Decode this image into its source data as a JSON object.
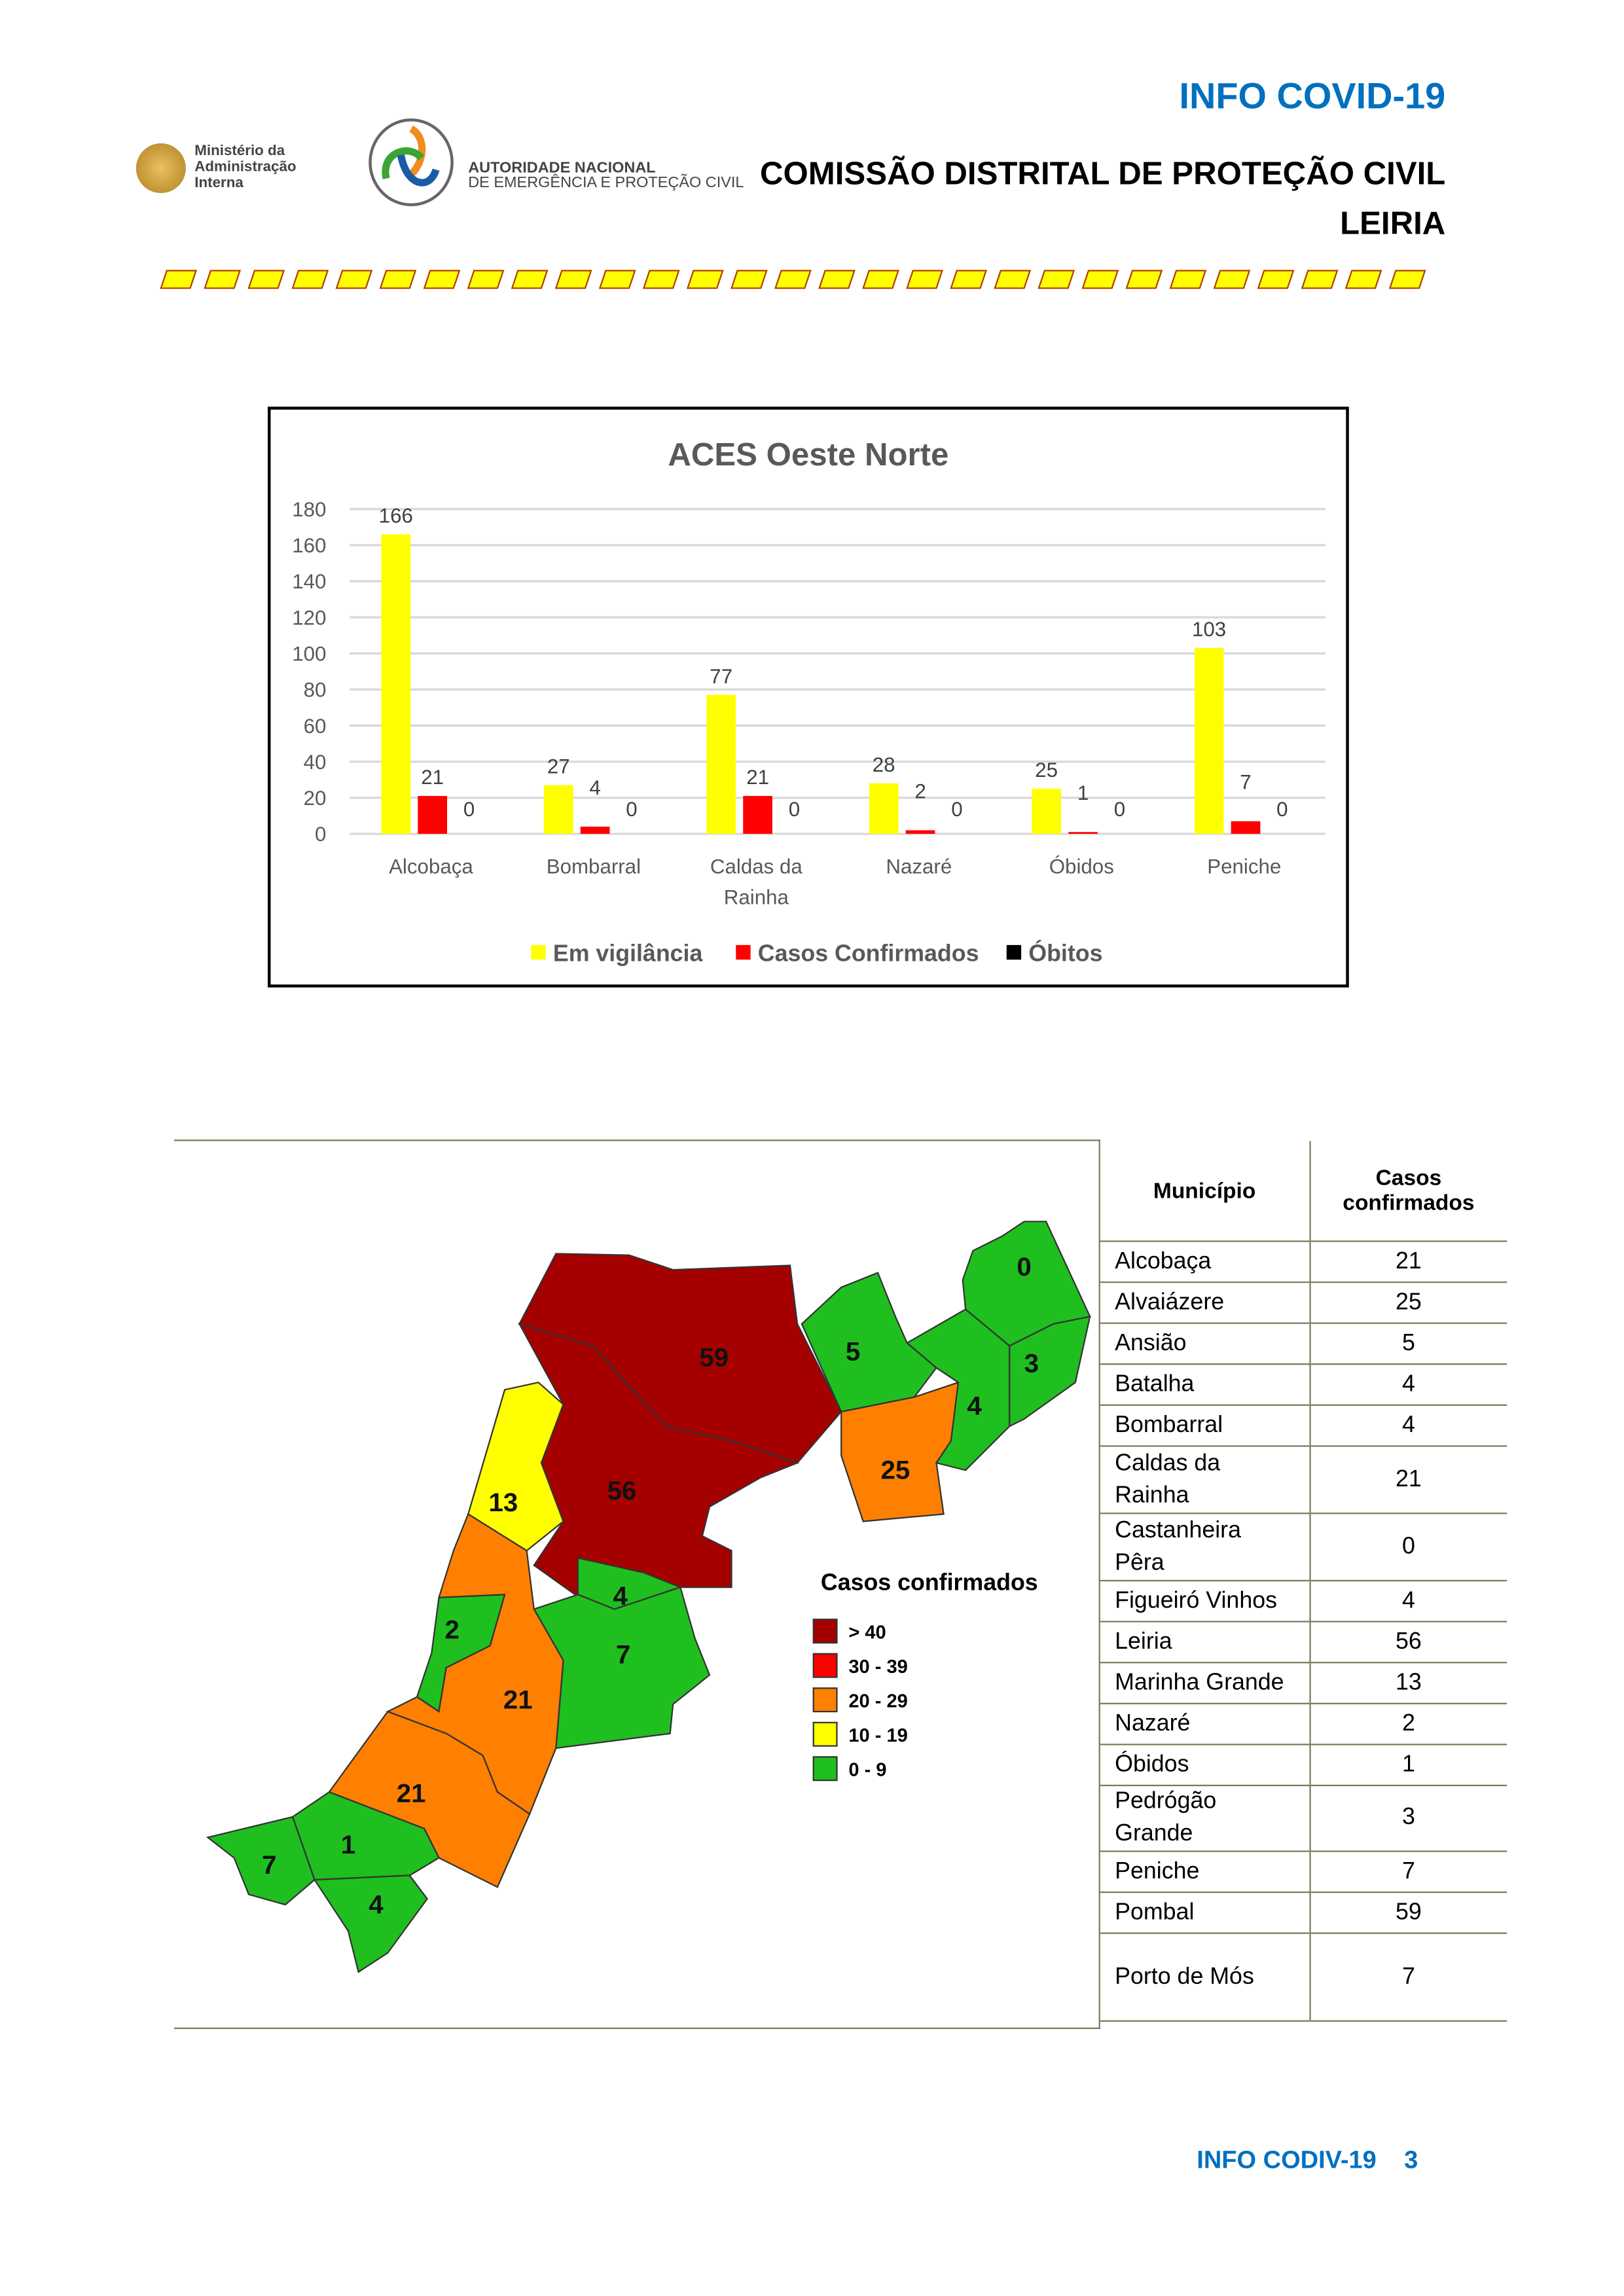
{
  "header": {
    "info_title": "INFO COVID-19",
    "commission": "COMISSÃO DISTRITAL DE PROTEÇÃO CIVIL",
    "district": "LEIRIA",
    "logo_mai": [
      "Ministério da",
      "Administração",
      "Interna"
    ],
    "logo_anepc": [
      "AUTORIDADE NACIONAL",
      "DE EMERGÊNCIA E PROTEÇÃO CIVIL"
    ]
  },
  "colors": {
    "blue": "#0070c0",
    "yellow": "#ffff00",
    "red": "#ff0000",
    "black": "#000000",
    "dark_red": "#a50000",
    "orange": "#ff8000",
    "green": "#1fbf1f"
  },
  "chart_data": {
    "type": "bar",
    "title": "ACES Oeste Norte",
    "categories": [
      "Alcobaça",
      "Bombarral",
      "Caldas da Rainha",
      "Nazaré",
      "Óbidos",
      "Peniche"
    ],
    "series": [
      {
        "name": "Em vigilância",
        "color": "#ffff00",
        "values": [
          166,
          27,
          77,
          28,
          25,
          103
        ]
      },
      {
        "name": "Casos Confirmados",
        "color": "#ff0000",
        "values": [
          21,
          4,
          21,
          2,
          1,
          7
        ]
      },
      {
        "name": "Óbitos",
        "color": "#000000",
        "values": [
          0,
          0,
          0,
          0,
          0,
          0
        ]
      }
    ],
    "ylim": [
      0,
      180
    ],
    "yticks": [
      0,
      20,
      40,
      60,
      80,
      100,
      120,
      140,
      160,
      180
    ],
    "grid": true,
    "legend": "bottom"
  },
  "map": {
    "legend_title": "Casos confirmados",
    "legend": [
      {
        "label": "> 40",
        "color": "#a50000"
      },
      {
        "label": "30 - 39",
        "color": "#ff0000"
      },
      {
        "label": "20 - 29",
        "color": "#ff8000"
      },
      {
        "label": "10 - 19",
        "color": "#ffff00"
      },
      {
        "label": "0 - 9",
        "color": "#1fbf1f"
      }
    ],
    "labels": {
      "pombal": "59",
      "leiria": "56",
      "marinha": "13",
      "alvaiazere": "25",
      "ansiao": "5",
      "figueiro": "4",
      "castanheira": "0",
      "pedrogao": "3",
      "batalha": "4",
      "portomos": "7",
      "nazare": "2",
      "alcobaca": "21",
      "caldas": "21",
      "obidos": "1",
      "peniche": "7",
      "bombarral": "4"
    }
  },
  "table": {
    "headers": [
      "Município",
      "Casos confirmados"
    ],
    "rows": [
      [
        "Alcobaça",
        "21"
      ],
      [
        "Alvaiázere",
        "25"
      ],
      [
        "Ansião",
        "5"
      ],
      [
        "Batalha",
        "4"
      ],
      [
        "Bombarral",
        "4"
      ],
      [
        "Caldas da Rainha",
        "21"
      ],
      [
        "Castanheira Pêra",
        "0"
      ],
      [
        "Figueiró Vinhos",
        "4"
      ],
      [
        "Leiria",
        "56"
      ],
      [
        "Marinha Grande",
        "13"
      ],
      [
        "Nazaré",
        "2"
      ],
      [
        "Óbidos",
        "1"
      ],
      [
        "Pedrógão Grande",
        "3"
      ],
      [
        "Peniche",
        "7"
      ],
      [
        "Pombal",
        "59"
      ],
      [
        "Porto de Mós",
        "7"
      ]
    ]
  },
  "footer": {
    "label": "INFO CODIV-19",
    "page": "3"
  }
}
